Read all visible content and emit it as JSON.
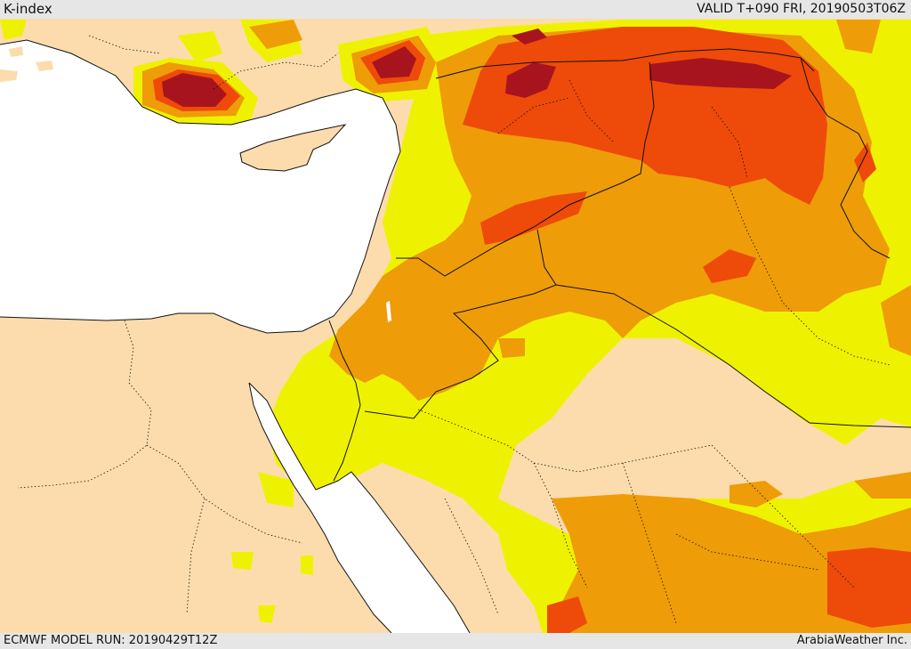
{
  "header": {
    "title": "K-index",
    "valid_time": "VALID T+090 FRI, 20190503T06Z"
  },
  "footer": {
    "model_run": "ECMWF MODEL RUN: 20190429T12Z",
    "credit": "ArabiaWeather Inc."
  },
  "map": {
    "field": "K-index",
    "colors": {
      "land_background": "#fcdcac",
      "water": "#ffffff",
      "level_1": "#eef200",
      "level_2": "#ee9c08",
      "level_3": "#ee4a0a",
      "level_4": "#a8141e",
      "borders": "#111111",
      "coastline": "#111111"
    }
  }
}
